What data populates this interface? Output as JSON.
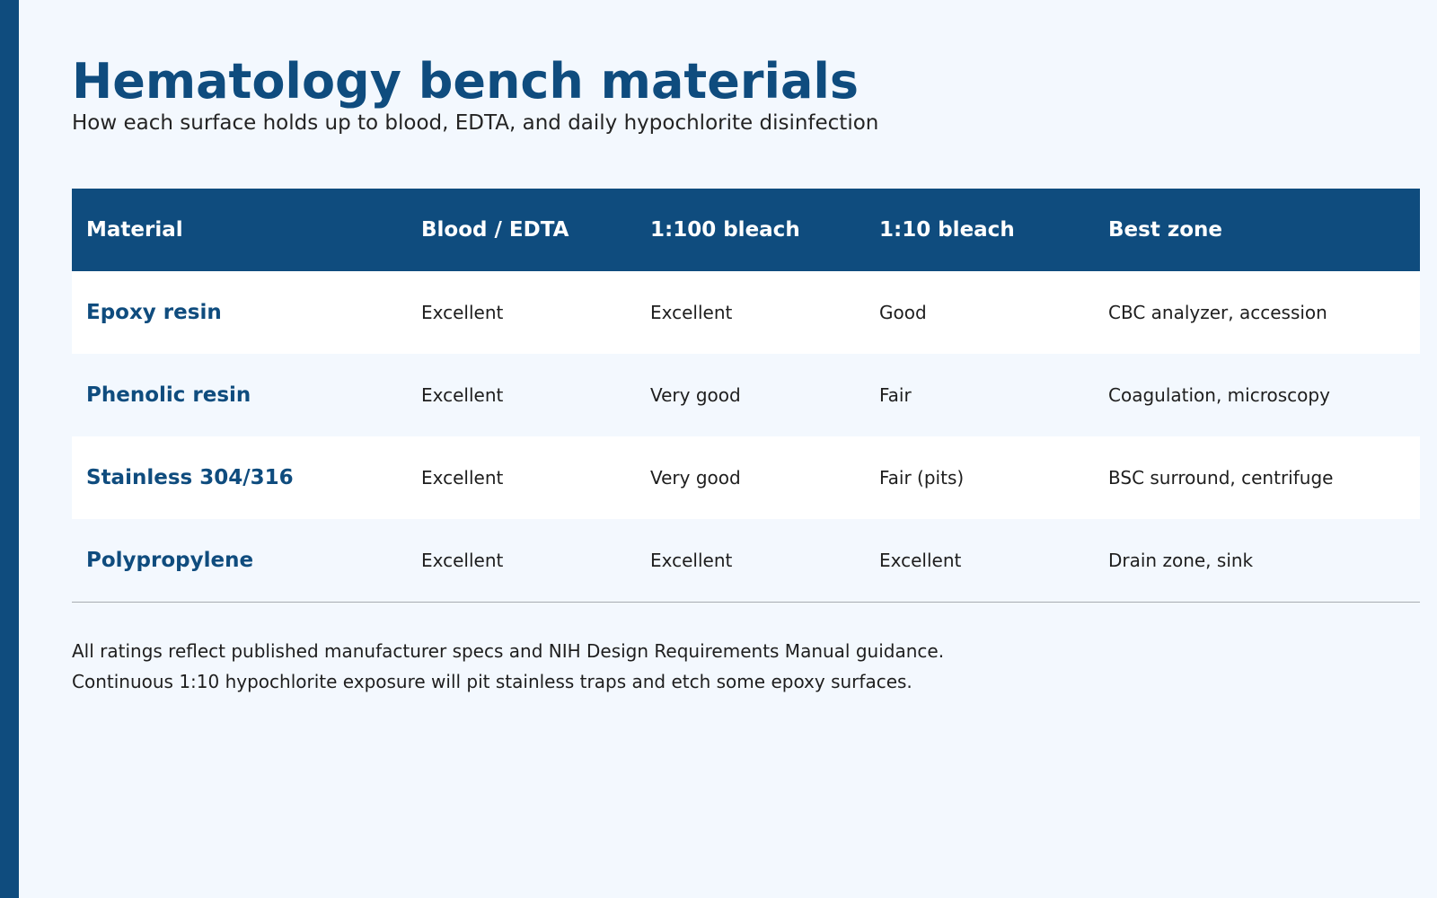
{
  "title": "Hematology bench materials",
  "subtitle": "How each surface holds up to blood, EDTA, and daily hypochlorite disinfection",
  "table": {
    "headers": [
      "Material",
      "Blood / EDTA",
      "1:100 bleach",
      "1:10 bleach",
      "Best zone"
    ],
    "rows": [
      [
        "Epoxy resin",
        "Excellent",
        "Excellent",
        "Good",
        "CBC analyzer, accession"
      ],
      [
        "Phenolic resin",
        "Excellent",
        "Very good",
        "Fair",
        "Coagulation, microscopy"
      ],
      [
        "Stainless 304/316",
        "Excellent",
        "Very good",
        "Fair (pits)",
        "BSC surround, centrifuge"
      ],
      [
        "Polypropylene",
        "Excellent",
        "Excellent",
        "Excellent",
        "Drain zone, sink"
      ]
    ]
  },
  "notes": [
    "All ratings reflect published manufacturer specs and NIH Design Requirements Manual guidance.",
    "Continuous 1:10 hypochlorite exposure will pit stainless traps and etch some epoxy surfaces."
  ],
  "colors": {
    "accent": "#0f4c7e",
    "background": "#f3f8fe",
    "row_alt": "#ffffff"
  }
}
